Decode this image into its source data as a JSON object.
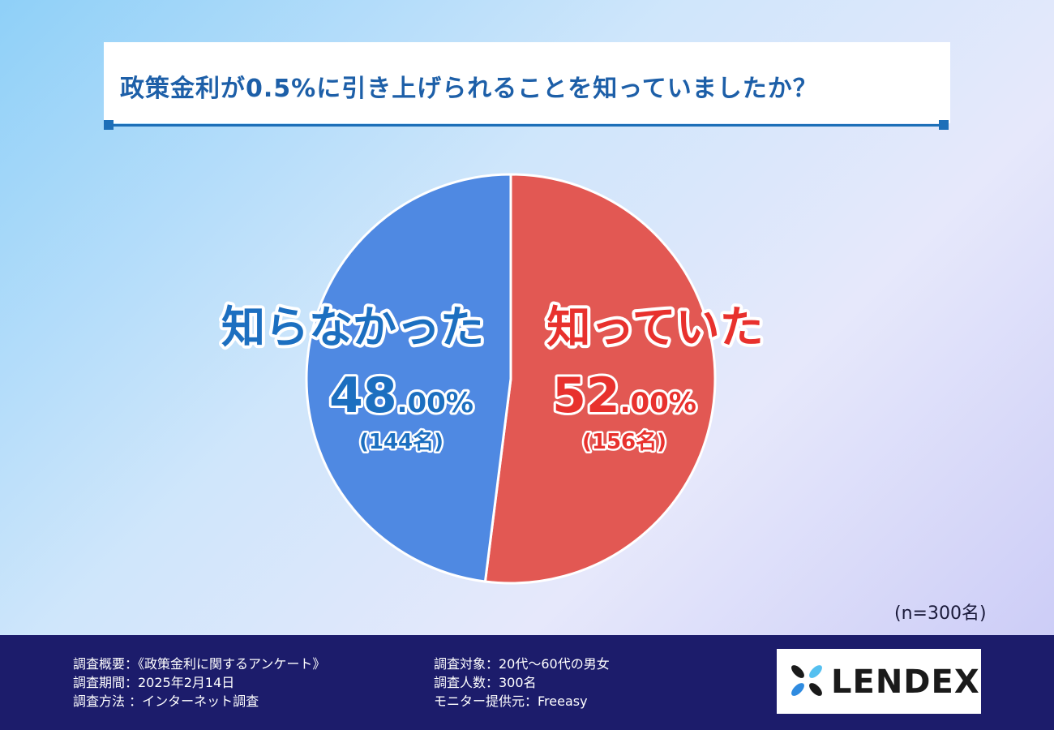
{
  "header": {
    "title": "政策金利が0.5%に引き上げられることを知っていましたか？"
  },
  "chart_data": {
    "type": "pie",
    "title": "政策金利が0.5%に引き上げられることを知っていましたか？",
    "slices": [
      {
        "label": "知っていた",
        "value": 52.0,
        "percent_main": "52",
        "percent_decimal": ".00%",
        "count": "(156名)",
        "color": "#e25853"
      },
      {
        "label": "知らなかった",
        "value": 48.0,
        "percent_main": "48",
        "percent_decimal": ".00%",
        "count": "(144名)",
        "color": "#4f89e2"
      }
    ],
    "sample_note": "(n=300名)",
    "label_colors": {
      "known": "#e8312d",
      "unknown": "#1c6fc0"
    }
  },
  "footer": {
    "summary": "調査概要：《政策金利に関するアンケート》",
    "period": "調査期間：2025年2月14日",
    "method": "調査方法 ：インターネット調査",
    "target": "調査対象：20代～60代の男女",
    "count": "調査人数：300名",
    "provider": "モニター提供元：Freeasy"
  },
  "logo": {
    "text": "LENDEX",
    "icon": "lendex-logo-mark-icon",
    "colors": [
      "#1a1a1a",
      "#2f8be0",
      "#55c0f0"
    ]
  }
}
